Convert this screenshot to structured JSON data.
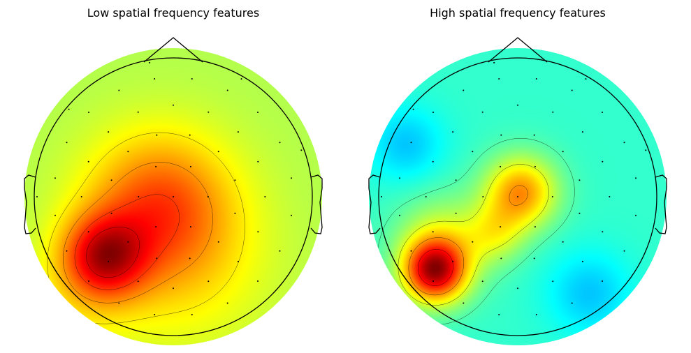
{
  "chart_data": [
    {
      "type": "heatmap",
      "title": "Low spatial frequency features",
      "colormap": "jet",
      "contour_levels": 4,
      "electrode_count": 64,
      "sources": [
        {
          "x": -0.47,
          "y": -0.41,
          "amp": 1.0,
          "spread": 0.2
        },
        {
          "x": -0.1,
          "y": -0.05,
          "amp": 0.7,
          "spread": 0.34
        },
        {
          "x": 0.05,
          "y": -0.45,
          "amp": 0.28,
          "spread": 0.42
        },
        {
          "x": -0.75,
          "y": -0.85,
          "amp": 0.15,
          "spread": 0.3
        }
      ],
      "baseline": 0.02
    },
    {
      "type": "heatmap",
      "title": "High spatial frequency features",
      "colormap": "jet",
      "contour_levels": 4,
      "electrode_count": 64,
      "sources": [
        {
          "x": -0.56,
          "y": -0.5,
          "amp": 1.0,
          "spread": 0.15
        },
        {
          "x": 0.02,
          "y": 0.03,
          "amp": 0.65,
          "spread": 0.17
        },
        {
          "x": -0.5,
          "y": -0.3,
          "amp": 0.32,
          "spread": 0.22
        },
        {
          "x": -0.15,
          "y": -0.25,
          "amp": 0.28,
          "spread": 0.14
        },
        {
          "x": -0.75,
          "y": 0.35,
          "amp": -0.22,
          "spread": 0.18
        },
        {
          "x": 0.48,
          "y": -0.65,
          "amp": -0.22,
          "spread": 0.2
        }
      ],
      "baseline": 0.1
    }
  ]
}
